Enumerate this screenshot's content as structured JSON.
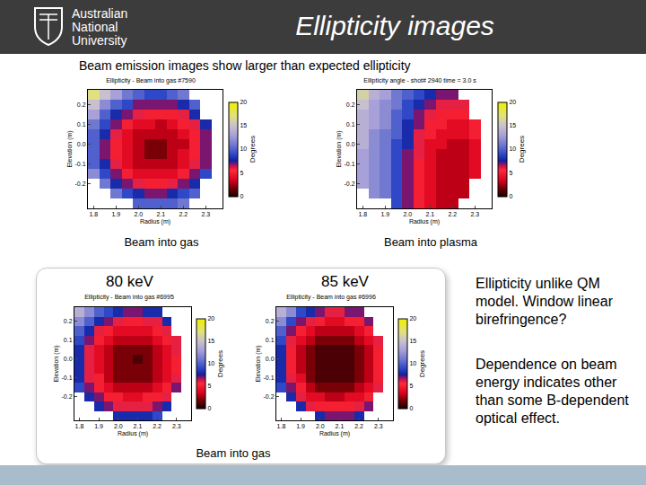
{
  "header": {
    "logo": [
      "Australian",
      "National",
      "University"
    ],
    "title": "Ellipticity images"
  },
  "subtitle": "Beam emission images show larger than expected ellipticity",
  "lower_group_caption": "Beam into gas",
  "notes": [
    "Ellipticity unlike QM model.  Window linear birefringence?",
    "Dependence on beam energy indicates other than some B-dependent optical effect."
  ],
  "chart_data": [
    {
      "type": "heatmap",
      "title": "Ellipticity - Beam into gas #7590",
      "caption": "Beam into gas",
      "x_label": "Radius (m)",
      "y_label": "Elevation (m)",
      "grid": false,
      "x": [
        1.8,
        1.85,
        1.9,
        1.95,
        2.0,
        2.05,
        2.1,
        2.15,
        2.2,
        2.25,
        2.3,
        2.35
      ],
      "y": [
        -0.3,
        -0.25,
        -0.2,
        -0.15,
        -0.1,
        -0.05,
        0,
        0.05,
        0.1,
        0.15,
        0.2,
        0.25
      ],
      "z": [
        [
          null,
          null,
          null,
          null,
          10,
          10,
          10,
          10,
          11,
          null,
          null,
          null
        ],
        [
          null,
          null,
          11,
          9,
          8,
          7,
          7,
          8,
          9,
          10,
          null,
          null
        ],
        [
          null,
          11,
          8,
          7,
          6,
          5,
          5,
          6,
          7,
          8,
          null,
          null
        ],
        [
          12,
          9,
          7,
          5,
          4,
          4,
          4,
          4,
          5,
          7,
          9,
          null
        ],
        [
          10,
          8,
          6,
          4,
          3,
          3,
          3,
          3,
          4,
          6,
          7,
          null
        ],
        [
          10,
          7,
          5,
          4,
          3,
          2,
          2,
          3,
          4,
          5,
          7,
          null
        ],
        [
          10,
          7,
          5,
          4,
          3,
          2,
          2,
          3,
          3,
          5,
          7,
          null
        ],
        [
          10,
          8,
          6,
          4,
          3,
          3,
          3,
          3,
          4,
          5,
          7,
          null
        ],
        [
          11,
          9,
          7,
          5,
          4,
          4,
          3,
          4,
          5,
          6,
          8,
          null
        ],
        [
          13,
          10,
          8,
          7,
          6,
          5,
          5,
          5,
          6,
          8,
          null,
          null
        ],
        [
          15,
          12,
          10,
          9,
          7,
          7,
          7,
          7,
          8,
          10,
          null,
          null
        ],
        [
          17,
          15,
          13,
          11,
          10,
          9,
          9,
          10,
          11,
          null,
          null,
          null
        ]
      ],
      "xlim": [
        1.775,
        2.375
      ],
      "ylim": [
        -0.325,
        0.275
      ],
      "xticks": [
        1.8,
        1.9,
        {
          "value": 2,
          "label": "2.0"
        },
        2.1,
        2.2,
        2.3
      ],
      "yticks": [
        -0.2,
        -0.1,
        {
          "value": 0,
          "label": "0.0"
        },
        0.1,
        0.2
      ],
      "colorbar": {
        "label": "Degrees",
        "range": [
          0,
          20
        ],
        "ticks": [
          0,
          5,
          10,
          15,
          20
        ]
      }
    },
    {
      "type": "heatmap",
      "title": "Ellipticity angle - shot# 2940 time = 3.0 s",
      "caption": "Beam into plasma",
      "x_label": "Radius (m)",
      "y_label": "Elevation (m)",
      "grid": false,
      "x": [
        1.8,
        1.85,
        1.9,
        1.95,
        2.0,
        2.05,
        2.1,
        2.15,
        2.2,
        2.25,
        2.3,
        2.35
      ],
      "y": [
        -0.3,
        -0.25,
        -0.2,
        -0.15,
        -0.1,
        -0.05,
        0,
        0.05,
        0.1,
        0.15,
        0.2,
        0.25
      ],
      "z": [
        [
          null,
          null,
          null,
          9,
          7,
          5,
          4,
          3,
          3,
          null,
          null,
          null
        ],
        [
          null,
          12,
          11,
          9,
          7,
          5,
          4,
          3,
          3,
          3,
          null,
          null
        ],
        [
          13,
          12,
          11,
          9,
          7,
          5,
          4,
          3,
          3,
          3,
          null,
          null
        ],
        [
          13,
          12,
          11,
          9,
          7,
          5,
          4,
          3,
          3,
          3,
          4,
          null
        ],
        [
          13,
          12,
          11,
          9,
          7,
          5,
          4,
          3,
          3,
          3,
          4,
          null
        ],
        [
          13,
          12,
          11,
          9,
          7,
          6,
          4,
          3,
          3,
          3,
          4,
          null
        ],
        [
          14,
          12,
          11,
          9,
          8,
          6,
          4,
          4,
          3,
          3,
          4,
          null
        ],
        [
          14,
          12,
          11,
          10,
          8,
          6,
          5,
          4,
          4,
          4,
          5,
          null
        ],
        [
          14,
          13,
          12,
          10,
          8,
          7,
          5,
          5,
          4,
          4,
          5,
          null
        ],
        [
          14,
          13,
          12,
          10,
          9,
          7,
          6,
          5,
          5,
          5,
          null,
          null
        ],
        [
          15,
          13,
          12,
          11,
          9,
          8,
          7,
          6,
          6,
          6,
          null,
          null
        ],
        [
          16,
          14,
          13,
          11,
          10,
          9,
          8,
          7,
          7,
          null,
          null,
          null
        ]
      ],
      "xlim": [
        1.775,
        2.375
      ],
      "ylim": [
        -0.325,
        0.275
      ],
      "xticks": [
        1.8,
        1.9,
        {
          "value": 2,
          "label": "2.0"
        },
        2.1,
        2.2,
        2.3
      ],
      "yticks": [
        -0.2,
        -0.1,
        {
          "value": 0,
          "label": "0.0"
        },
        0.1,
        0.2
      ],
      "colorbar": {
        "label": "Degrees",
        "range": [
          0,
          20
        ],
        "ticks": [
          0,
          5,
          10,
          15,
          20
        ]
      }
    },
    {
      "type": "heatmap",
      "title": "Ellipticity - Beam into gas #6995",
      "caption": "80 keV",
      "x_label": "Radius (m)",
      "y_label": "Elevation (m)",
      "grid": false,
      "x": [
        1.8,
        1.85,
        1.9,
        1.95,
        2.0,
        2.05,
        2.1,
        2.15,
        2.2,
        2.25,
        2.3,
        2.35
      ],
      "y": [
        -0.3,
        -0.25,
        -0.2,
        -0.15,
        -0.1,
        -0.05,
        0,
        0.05,
        0.1,
        0.15,
        0.2,
        0.25
      ],
      "z": [
        [
          null,
          null,
          null,
          null,
          8,
          8,
          8,
          8,
          9,
          null,
          null,
          null
        ],
        [
          null,
          null,
          8,
          7,
          6,
          6,
          6,
          6,
          7,
          8,
          null,
          null
        ],
        [
          null,
          8,
          7,
          5,
          5,
          4,
          4,
          5,
          5,
          6,
          null,
          null
        ],
        [
          9,
          7,
          5,
          4,
          3,
          3,
          3,
          3,
          4,
          5,
          7,
          null
        ],
        [
          8,
          6,
          5,
          3,
          2,
          2,
          2,
          2,
          3,
          4,
          6,
          null
        ],
        [
          8,
          6,
          4,
          3,
          2,
          2,
          2,
          2,
          3,
          4,
          5,
          null
        ],
        [
          8,
          6,
          4,
          3,
          2,
          2,
          1,
          2,
          3,
          4,
          5,
          null
        ],
        [
          8,
          6,
          4,
          3,
          2,
          2,
          2,
          2,
          3,
          4,
          6,
          null
        ],
        [
          9,
          7,
          5,
          4,
          3,
          3,
          3,
          3,
          4,
          5,
          6,
          null
        ],
        [
          10,
          8,
          6,
          5,
          4,
          4,
          4,
          4,
          5,
          6,
          null,
          null
        ],
        [
          12,
          10,
          8,
          7,
          6,
          5,
          5,
          6,
          6,
          8,
          null,
          null
        ],
        [
          14,
          12,
          10,
          9,
          8,
          7,
          7,
          8,
          8,
          null,
          null,
          null
        ]
      ],
      "xlim": [
        1.775,
        2.375
      ],
      "ylim": [
        -0.325,
        0.275
      ],
      "xticks": [
        1.8,
        1.9,
        {
          "value": 2,
          "label": "2.0"
        },
        2.1,
        2.2,
        2.3
      ],
      "yticks": [
        -0.2,
        -0.1,
        {
          "value": 0,
          "label": "0.0"
        },
        0.1,
        0.2
      ],
      "colorbar": {
        "label": "Degrees",
        "range": [
          0,
          20
        ],
        "ticks": [
          0,
          5,
          10,
          15,
          20
        ]
      }
    },
    {
      "type": "heatmap",
      "title": "Ellipticity - Beam into gas #6996",
      "caption": "85 keV",
      "x_label": "Radius (m)",
      "y_label": "Elevation (m)",
      "grid": false,
      "x": [
        1.8,
        1.85,
        1.9,
        1.95,
        2.0,
        2.05,
        2.1,
        2.15,
        2.2,
        2.25,
        2.3,
        2.35
      ],
      "y": [
        -0.3,
        -0.25,
        -0.2,
        -0.15,
        -0.1,
        -0.05,
        0,
        0.05,
        0.1,
        0.15,
        0.2,
        0.25
      ],
      "z": [
        [
          null,
          null,
          null,
          null,
          8,
          7,
          7,
          7,
          8,
          null,
          null,
          null
        ],
        [
          null,
          null,
          8,
          6,
          5,
          5,
          5,
          5,
          6,
          7,
          null,
          null
        ],
        [
          null,
          8,
          6,
          4,
          4,
          3,
          3,
          4,
          4,
          5,
          null,
          null
        ],
        [
          9,
          7,
          5,
          3,
          2,
          2,
          2,
          2,
          3,
          4,
          6,
          null
        ],
        [
          8,
          6,
          4,
          2,
          1,
          1,
          1,
          1,
          2,
          3,
          5,
          null
        ],
        [
          8,
          5,
          3,
          2,
          1,
          1,
          1,
          1,
          2,
          3,
          5,
          null
        ],
        [
          8,
          5,
          3,
          2,
          1,
          1,
          1,
          1,
          2,
          3,
          5,
          null
        ],
        [
          8,
          5,
          3,
          2,
          1,
          1,
          1,
          1,
          2,
          3,
          5,
          null
        ],
        [
          9,
          6,
          4,
          3,
          2,
          2,
          2,
          2,
          3,
          4,
          6,
          null
        ],
        [
          10,
          7,
          5,
          4,
          3,
          3,
          3,
          3,
          4,
          5,
          null,
          null
        ],
        [
          12,
          9,
          7,
          6,
          5,
          4,
          4,
          5,
          5,
          7,
          null,
          null
        ],
        [
          14,
          12,
          9,
          8,
          7,
          6,
          6,
          7,
          7,
          null,
          null,
          null
        ]
      ],
      "xlim": [
        1.775,
        2.375
      ],
      "ylim": [
        -0.325,
        0.275
      ],
      "xticks": [
        1.8,
        1.9,
        {
          "value": 2,
          "label": "2.0"
        },
        2.1,
        2.2,
        2.3
      ],
      "yticks": [
        -0.2,
        -0.1,
        {
          "value": 0,
          "label": "0.0"
        },
        0.1,
        0.2
      ],
      "colorbar": {
        "label": "Degrees",
        "range": [
          0,
          20
        ],
        "ticks": [
          0,
          5,
          10,
          15,
          20
        ]
      }
    }
  ]
}
